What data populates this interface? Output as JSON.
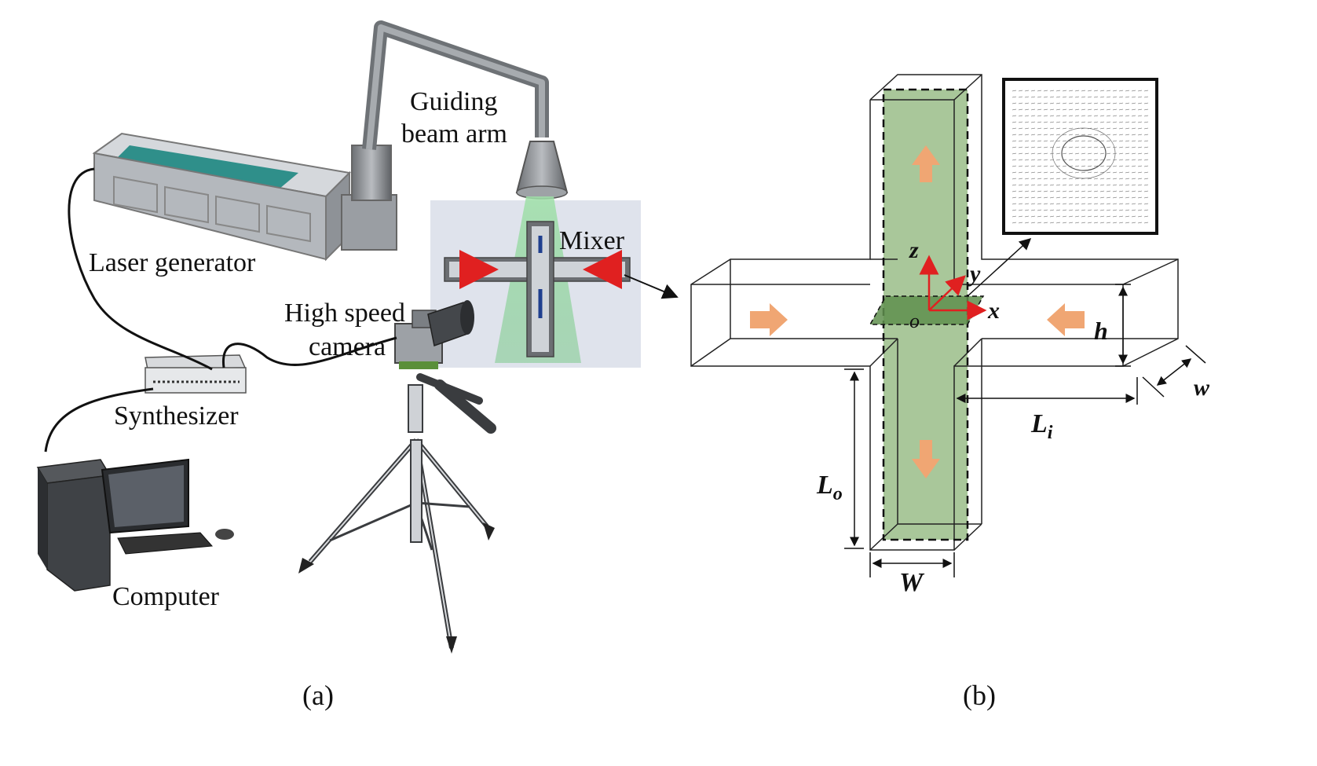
{
  "panel_a": {
    "caption": "(a)",
    "labels": {
      "laser_generator": "Laser generator",
      "guiding_beam_arm_line1": "Guiding",
      "guiding_beam_arm_line2": "beam arm",
      "mixer": "Mixer",
      "high_speed_camera_line1": "High speed",
      "high_speed_camera_line2": "camera",
      "synthesizer": "Synthesizer",
      "computer": "Computer"
    }
  },
  "panel_b": {
    "caption": "(b)",
    "labels": {
      "z": "z",
      "y": "y",
      "x": "x",
      "o": "o",
      "h": "h",
      "w": "w",
      "W": "W",
      "L_i_main": "L",
      "L_i_sub": "i",
      "L_o_main": "L",
      "L_o_sub": "o"
    }
  },
  "colors": {
    "channel_fill": "#a9c79a",
    "flow_arrow": "#f0a673",
    "axis_arrow": "#e02020",
    "laser_green": "#8fd09a",
    "laser_body": "#c9ccd0",
    "laser_panel": "#2f8f8a"
  }
}
